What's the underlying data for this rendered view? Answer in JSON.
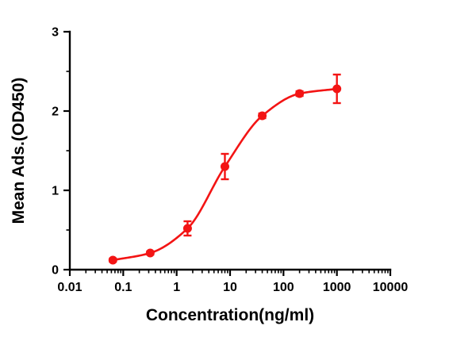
{
  "figure": {
    "description": "Dose-response ELISA binding curve"
  },
  "chart_data": {
    "type": "scatter",
    "subtype": "dose-response-curve-with-error-bars",
    "title": "",
    "xlabel": "Concentration(ng/ml)",
    "ylabel": "Mean Ads.(OD450)",
    "x_scale": "log10",
    "xlim": [
      0.01,
      10000
    ],
    "ylim": [
      0,
      3
    ],
    "x_major_ticks": [
      0.01,
      0.1,
      1,
      10,
      100,
      1000,
      10000
    ],
    "x_tick_labels": [
      "0.01",
      "0.1",
      "1",
      "10",
      "100",
      "1000",
      "10000"
    ],
    "y_major_ticks": [
      0,
      1,
      2,
      3
    ],
    "y_tick_labels": [
      "0",
      "1",
      "2",
      "3"
    ],
    "y_minor_step": 0.5,
    "grid": false,
    "legend": "none",
    "series": [
      {
        "name": "Mean Ads.(OD450)",
        "color": "#f31414",
        "marker": "circle",
        "x": [
          0.064,
          0.32,
          1.6,
          8,
          40,
          200,
          1000
        ],
        "y": [
          0.12,
          0.21,
          0.52,
          1.3,
          1.94,
          2.22,
          2.28
        ],
        "yerr": [
          0.02,
          0.02,
          0.09,
          0.16,
          0.03,
          0.03,
          0.18
        ]
      }
    ]
  }
}
